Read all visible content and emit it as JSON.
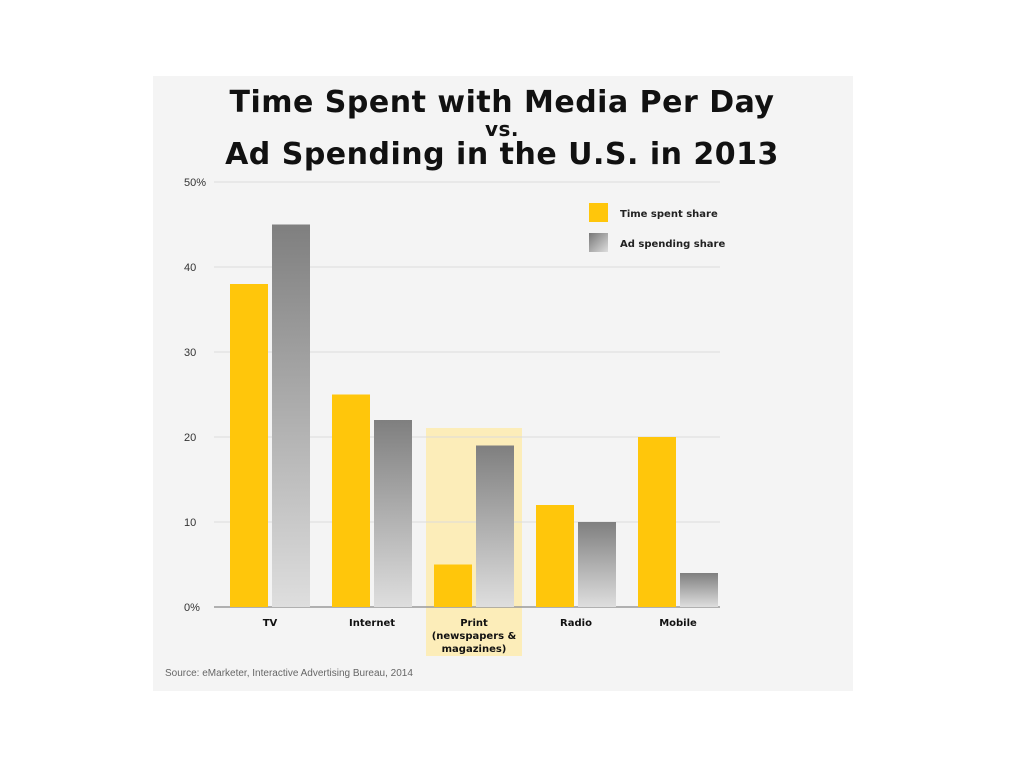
{
  "title": {
    "line1": "Time Spent with Media Per Day",
    "line2": "vs.",
    "line3": "Ad Spending in the U.S. in 2013"
  },
  "source": "Source: eMarketer, Interactive Advertising Bureau, 2014",
  "colors": {
    "time_spent": "#ffc60b",
    "ad_spending": "#8a8a8a",
    "highlight": "#fcedb9"
  },
  "chart_data": {
    "type": "bar",
    "categories": [
      "TV",
      "Internet",
      "Print\n(newspapers &\nmagazines)",
      "Radio",
      "Mobile"
    ],
    "series": [
      {
        "name": "Time spent share",
        "values": [
          38,
          25,
          5,
          12,
          20
        ]
      },
      {
        "name": "Ad spending share",
        "values": [
          45,
          22,
          19,
          10,
          4
        ]
      }
    ],
    "ylim": [
      0,
      50
    ],
    "yticks": [
      0,
      10,
      20,
      30,
      40,
      50
    ],
    "ytick_labels": [
      "0%",
      "10",
      "20",
      "30",
      "40",
      "50%"
    ],
    "grid": true,
    "legend": "top-right",
    "highlighted_category": 2
  }
}
